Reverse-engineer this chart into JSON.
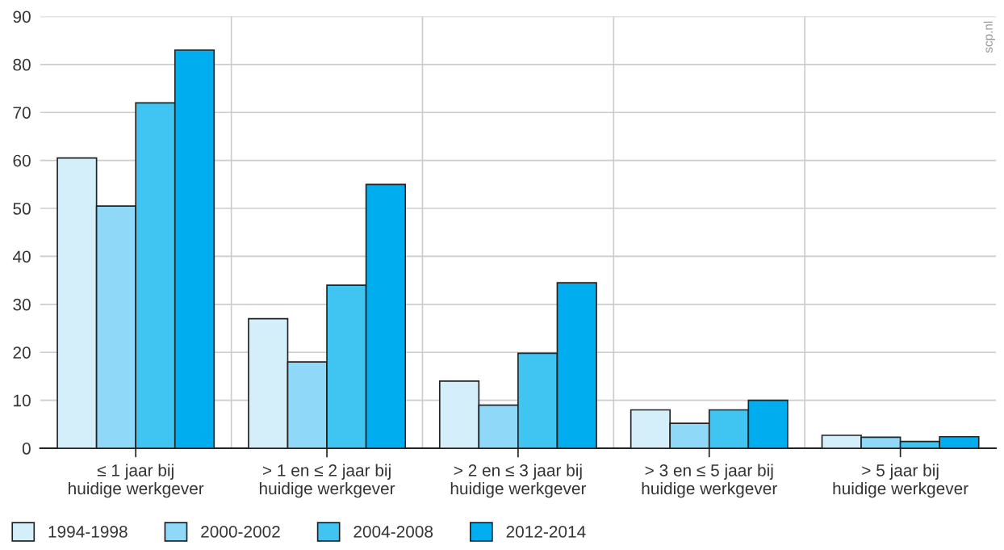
{
  "chart_data": {
    "type": "bar",
    "categories": [
      "≤ 1 jaar bij\nhuidige werkgever",
      "> 1 en ≤ 2 jaar bij\nhuidige werkgever",
      "> 2 en ≤ 3 jaar bij\nhuidige werkgever",
      "> 3 en ≤ 5 jaar bij\nhuidige werkgever",
      "> 5 jaar bij\nhuidige werkgever"
    ],
    "series": [
      {
        "name": "1994-1998",
        "color": "#d4effa",
        "values": [
          60.5,
          27,
          14,
          8,
          2.7
        ]
      },
      {
        "name": "2000-2002",
        "color": "#8fd8f7",
        "values": [
          50.5,
          18,
          9,
          5.2,
          2.3
        ]
      },
      {
        "name": "2004-2008",
        "color": "#40c4f2",
        "values": [
          72,
          34,
          19.8,
          8,
          1.4
        ]
      },
      {
        "name": "2012-2014",
        "color": "#00aeef",
        "values": [
          83,
          55,
          34.5,
          10,
          2.4
        ]
      }
    ],
    "ylim": [
      0,
      90
    ],
    "yticks": [
      0,
      10,
      20,
      30,
      40,
      50,
      60,
      70,
      80,
      90
    ],
    "grid": true,
    "legend": "bottom left",
    "annotations": [
      "scp.nl"
    ]
  }
}
